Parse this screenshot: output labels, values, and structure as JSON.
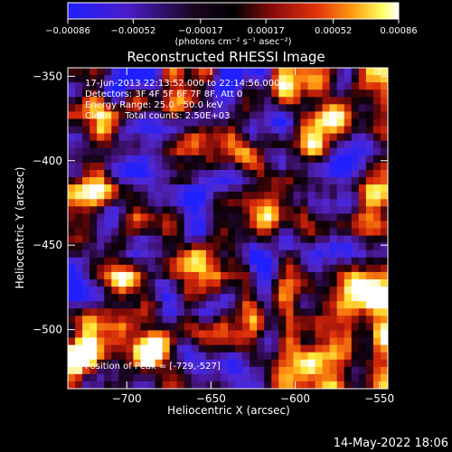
{
  "chart_data": {
    "type": "heatmap",
    "title": "Reconstructed RHESSI Image",
    "xlabel": "Heliocentric X (arcsec)",
    "ylabel": "Heliocentric Y (arcsec)",
    "xlim": [
      -735,
      -545
    ],
    "ylim": [
      -535,
      -345
    ],
    "x_ticks": [
      -700,
      -650,
      -600,
      -550
    ],
    "x_tick_labels": [
      "−700",
      "−650",
      "−600",
      "−550"
    ],
    "y_ticks": [
      -350,
      -400,
      -450,
      -500
    ],
    "y_tick_labels": [
      "−350",
      "−400",
      "−450",
      "−500"
    ],
    "colorbar": {
      "range": [
        -0.00086,
        0.00086
      ],
      "ticks": [
        -0.00086,
        -0.00052,
        -0.00017,
        0.00017,
        0.00052,
        0.00086
      ],
      "tick_labels": [
        "−0.00086",
        "−0.00052",
        "−0.00017",
        "0.00017",
        "0.00052",
        "0.00086"
      ],
      "unit_label": "(photons cm⁻² s⁻¹ asec⁻²)"
    },
    "annotations": [
      "17-Jun-2013 22:13:52.000 to 22:14:56.000",
      "Detectors: 3F 4F 5F 6F 7F 8F, Att 0",
      "Energy Range: 25.0 - 50.0 keV",
      "Clean     Total counts: 2.50E+03"
    ],
    "peak_label": "Position of Peak = [-729,-527]",
    "peak_position": [
      -729,
      -527
    ],
    "bright_regions": [
      {
        "x": -712,
        "y": -417,
        "intensity": 0.85
      },
      {
        "x": -693,
        "y": -433,
        "intensity": 0.7
      },
      {
        "x": -700,
        "y": -470,
        "intensity": 0.55
      },
      {
        "x": -722,
        "y": -513,
        "intensity": 1.0
      },
      {
        "x": -712,
        "y": -500,
        "intensity": 0.8
      },
      {
        "x": -688,
        "y": -517,
        "intensity": 0.65
      },
      {
        "x": -628,
        "y": -400,
        "intensity": 0.6
      },
      {
        "x": -612,
        "y": -430,
        "intensity": 0.65
      },
      {
        "x": -588,
        "y": -392,
        "intensity": 0.95
      },
      {
        "x": -575,
        "y": -370,
        "intensity": 0.7
      },
      {
        "x": -552,
        "y": -430,
        "intensity": 0.6
      },
      {
        "x": -565,
        "y": -475,
        "intensity": 0.85
      },
      {
        "x": -553,
        "y": -488,
        "intensity": 0.75
      },
      {
        "x": -605,
        "y": -480,
        "intensity": 0.55
      },
      {
        "x": -590,
        "y": -513,
        "intensity": 0.7
      },
      {
        "x": -640,
        "y": -500,
        "intensity": 0.5
      },
      {
        "x": -655,
        "y": -455,
        "intensity": 0.45
      },
      {
        "x": -670,
        "y": -370,
        "intensity": 0.4
      },
      {
        "x": -598,
        "y": -355,
        "intensity": 0.5
      },
      {
        "x": -710,
        "y": -380,
        "intensity": 0.5
      }
    ],
    "grid": false,
    "colormap": "RHESSI blue-black-red-yellow-white"
  },
  "footer": {
    "date": "14-May-2022 18:06"
  },
  "colors": {
    "background": "#000000",
    "text": "#ffffff",
    "colormap_stops": [
      "#1a1aff",
      "#000000",
      "#c01010",
      "#ff7a00",
      "#ffff40",
      "#ffffff"
    ]
  }
}
